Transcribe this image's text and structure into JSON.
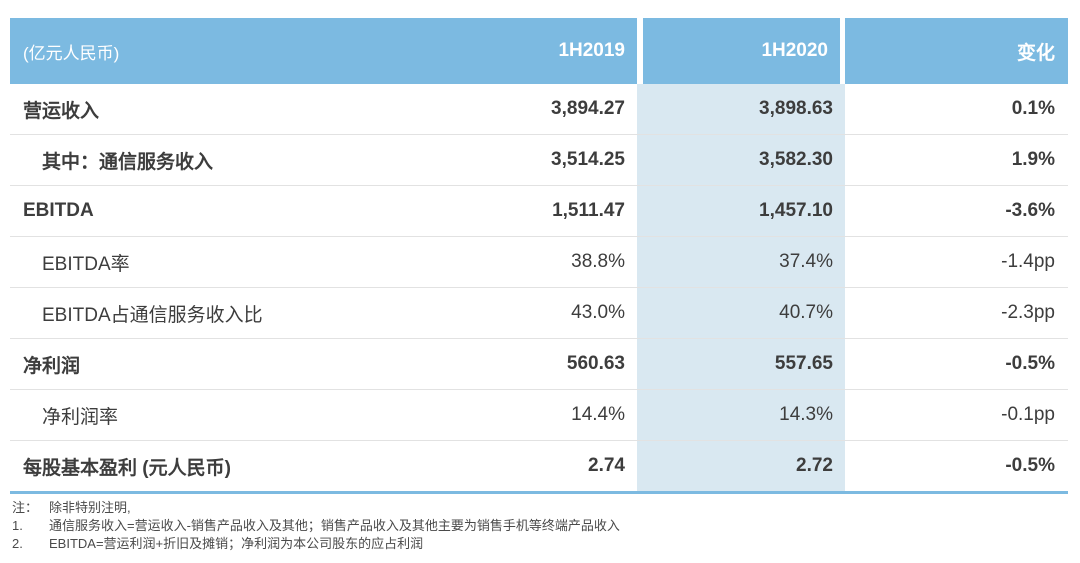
{
  "table": {
    "unit_label": "(亿元人民币)",
    "columns": {
      "c1": "1H2019",
      "c2": "1H2020",
      "c3": "变化"
    },
    "rows": [
      {
        "label": "营运收入",
        "bold": true,
        "indent": false,
        "v2019": "3,894.27",
        "v2020": "3,898.63",
        "change": "0.1%"
      },
      {
        "label": "其中：通信服务收入",
        "bold": true,
        "indent": true,
        "v2019": "3,514.25",
        "v2020": "3,582.30",
        "change": "1.9%"
      },
      {
        "label": "EBITDA",
        "bold": true,
        "indent": false,
        "v2019": "1,511.47",
        "v2020": "1,457.10",
        "change": "-3.6%"
      },
      {
        "label": "EBITDA率",
        "bold": false,
        "indent": true,
        "v2019": "38.8%",
        "v2020": "37.4%",
        "change": "-1.4pp"
      },
      {
        "label": "EBITDA占通信服务收入比",
        "bold": false,
        "indent": true,
        "v2019": "43.0%",
        "v2020": "40.7%",
        "change": "-2.3pp"
      },
      {
        "label": "净利润",
        "bold": true,
        "indent": false,
        "v2019": "560.63",
        "v2020": "557.65",
        "change": "-0.5%"
      },
      {
        "label": "净利润率",
        "bold": false,
        "indent": true,
        "v2019": "14.4%",
        "v2020": "14.3%",
        "change": "-0.1pp"
      },
      {
        "label": "每股基本盈利 (元人民币)",
        "bold": true,
        "indent": false,
        "v2019": "2.74",
        "v2020": "2.72",
        "change": "-0.5%"
      }
    ]
  },
  "footnotes": {
    "intro_num": "注：",
    "intro_text": "除非特别注明,",
    "items": [
      {
        "num": "1.",
        "text": "通信服务收入=营运收入-销售产品收入及其他；销售产品收入及其他主要为销售手机等终端产品收入"
      },
      {
        "num": "2.",
        "text": "EBITDA=营运利润+折旧及摊销；净利润为本公司股东的应占利润"
      }
    ]
  },
  "colors": {
    "header_bg": "#7cbae1",
    "header_text": "#ffffff",
    "highlight_column_bg": "#d9e8f1",
    "body_text": "#3d3d3d",
    "divider": "#e2e2e2",
    "bottom_border": "#7cbae1"
  }
}
